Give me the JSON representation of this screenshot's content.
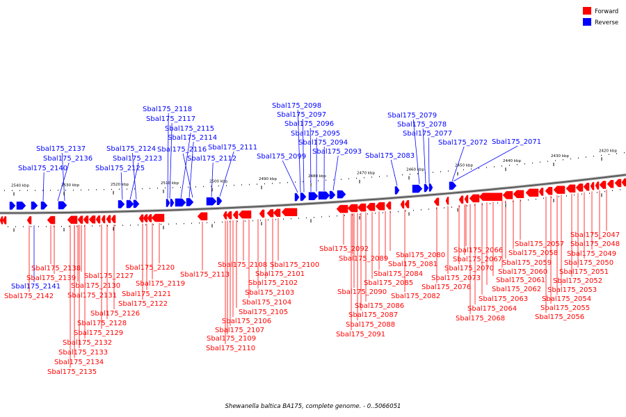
{
  "legend": {
    "forward": {
      "label": "Forward",
      "color": "#ff0000"
    },
    "reverse": {
      "label": "Reverse",
      "color": "#0000ff"
    }
  },
  "caption": "Shewanella baltica BA175, complete genome. - 0..5066051",
  "ticks": [
    "2540 kbp",
    "2530 kbp",
    "2520 kbp",
    "2510 kbp",
    "2500 kbp",
    "2490 kbp",
    "2480 kbp",
    "2470 kbp",
    "2460 kbp",
    "2450 kbp",
    "2440 kbp",
    "2430 kbp",
    "2420 kbp"
  ],
  "reverse_genes": [
    "Sbal175_2140",
    "Sbal175_2136",
    "Sbal175_2137",
    "Sbal175_2125",
    "Sbal175_2123",
    "Sbal175_2124",
    "Sbal175_2118",
    "Sbal175_2117",
    "Sbal175_2115",
    "Sbal175_2114",
    "Sbal175_2116",
    "Sbal175_2112",
    "Sbal175_2111",
    "Sbal175_2099",
    "Sbal175_2098",
    "Sbal175_2097",
    "Sbal175_2096",
    "Sbal175_2095",
    "Sbal175_2094",
    "Sbal175_2093",
    "Sbal175_2083",
    "Sbal175_2079",
    "Sbal175_2078",
    "Sbal175_2077",
    "Sbal175_2072",
    "Sbal175_2071",
    "Sbal175_2141"
  ],
  "forward_genes": [
    "Sbal175_2138",
    "Sbal175_2139",
    "Sbal175_2142",
    "Sbal175_2127",
    "Sbal175_2130",
    "Sbal175_2131",
    "Sbal175_2126",
    "Sbal175_2128",
    "Sbal175_2129",
    "Sbal175_2132",
    "Sbal175_2133",
    "Sbal175_2134",
    "Sbal175_2135",
    "Sbal175_2120",
    "Sbal175_2119",
    "Sbal175_2121",
    "Sbal175_2122",
    "Sbal175_2113",
    "Sbal175_2108",
    "Sbal175_2100",
    "Sbal175_2101",
    "Sbal175_2102",
    "Sbal175_2103",
    "Sbal175_2104",
    "Sbal175_2105",
    "Sbal175_2106",
    "Sbal175_2107",
    "Sbal175_2109",
    "Sbal175_2110",
    "Sbal175_2092",
    "Sbal175_2089",
    "Sbal175_2080",
    "Sbal175_2081",
    "Sbal175_2084",
    "Sbal175_2085",
    "Sbal175_2090",
    "Sbal175_2082",
    "Sbal175_2086",
    "Sbal175_2087",
    "Sbal175_2088",
    "Sbal175_2091",
    "Sbal175_2066",
    "Sbal175_2067",
    "Sbal175_2070",
    "Sbal175_2073",
    "Sbal175_2076",
    "Sbal175_2064",
    "Sbal175_2068",
    "Sbal175_2063",
    "Sbal175_2062",
    "Sbal175_2061",
    "Sbal175_2060",
    "Sbal175_2059",
    "Sbal175_2058",
    "Sbal175_2057",
    "Sbal175_2047",
    "Sbal175_2048",
    "Sbal175_2049",
    "Sbal175_2050",
    "Sbal175_2051",
    "Sbal175_2052",
    "Sbal175_2053",
    "Sbal175_2054",
    "Sbal175_2055",
    "Sbal175_2056"
  ]
}
